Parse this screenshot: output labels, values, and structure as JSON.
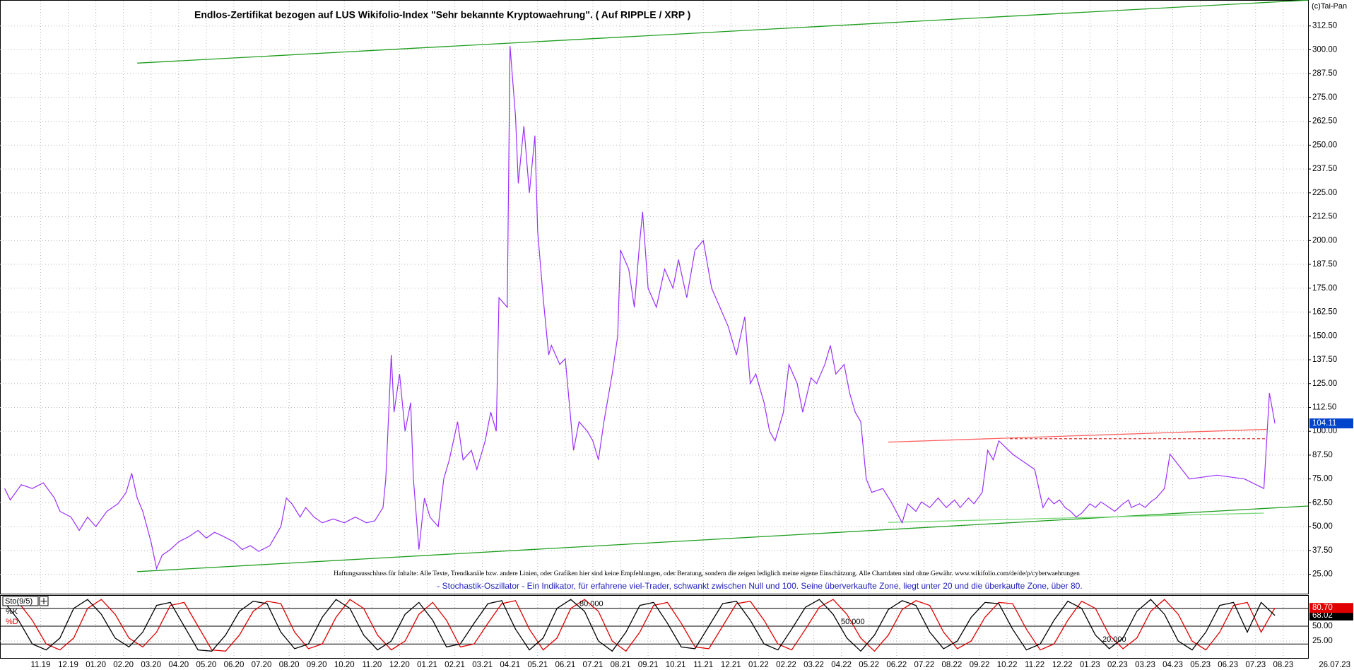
{
  "chart_data": [
    {
      "type": "line",
      "title": "Endlos-Zertifikat bezogen auf LUS Wikifolio-Index \"Sehr bekannte Kryptowaehrung\". ( Auf RIPPLE / XRP )",
      "copyright": "(c)Tai-Pan",
      "disclaimer": "Haftungsausschluss für Inhalte: Alle Texte, Trendkanäle bzw. andere Linien, oder Grafiken hier sind keine Empfehlungen, oder Beratung, sondern die zeigen lediglich meine eigene Einschätzung. Alle Chartdaten sind ohne Gewähr.  www.wikifolio.com/de/de/p/cyberwaehrungen",
      "note": "- Stochastik-Oszillator - Ein Indikator, für erfahrene viel-Trader, schwankt zwischen Null und 100. Seine überverkaufte Zone, liegt unter 20 und die überkaufte Zone, über 80.",
      "categories": [
        "11.19",
        "12.19",
        "01.20",
        "02.20",
        "03.20",
        "04.20",
        "05.20",
        "06.20",
        "07.20",
        "08.20",
        "09.20",
        "10.20",
        "11.20",
        "12.20",
        "01.21",
        "02.21",
        "03.21",
        "04.21",
        "05.21",
        "06.21",
        "07.21",
        "08.21",
        "09.21",
        "10.21",
        "11.21",
        "12.21",
        "01.22",
        "02.22",
        "03.22",
        "04.22",
        "05.22",
        "06.22",
        "07.22",
        "08.22",
        "09.22",
        "10.22",
        "11.22",
        "12.22",
        "01.23",
        "02.23",
        "03.23",
        "04.23",
        "05.23",
        "06.23",
        "07.23",
        "08.23"
      ],
      "last_date": "26.07.23",
      "xlim": [
        -1.47,
        45.9
      ],
      "ylim": [
        14.85,
        326.1
      ],
      "yticks": [
        {
          "value": 25,
          "label": "25.00"
        },
        {
          "value": 37.5,
          "label": "37.50"
        },
        {
          "value": 50,
          "label": "50.00"
        },
        {
          "value": 62.5,
          "label": "62.50"
        },
        {
          "value": 75,
          "label": "75.00"
        },
        {
          "value": 87.5,
          "label": "87.50"
        },
        {
          "value": 100,
          "label": "100.00"
        },
        {
          "value": 112.5,
          "label": "112.50"
        },
        {
          "value": 125,
          "label": "125.00"
        },
        {
          "value": 137.5,
          "label": "137.50"
        },
        {
          "value": 150,
          "label": "150.00"
        },
        {
          "value": 162.5,
          "label": "162.50"
        },
        {
          "value": 175,
          "label": "175.00"
        },
        {
          "value": 187.5,
          "label": "187.50"
        },
        {
          "value": 200,
          "label": "200.00"
        },
        {
          "value": 212.5,
          "label": "212.50"
        },
        {
          "value": 225,
          "label": "225.00"
        },
        {
          "value": 237.5,
          "label": "237.50"
        },
        {
          "value": 250,
          "label": "250.00"
        },
        {
          "value": 262.5,
          "label": "262.50"
        },
        {
          "value": 275,
          "label": "275.00"
        },
        {
          "value": 287.5,
          "label": "287.50"
        },
        {
          "value": 300,
          "label": "300.00"
        },
        {
          "value": 312.5,
          "label": "312.50"
        }
      ],
      "grid": true,
      "series": [
        {
          "color": "#9b30ff",
          "x": [
            -1.3,
            -1.1,
            -0.7,
            -0.3,
            0.1,
            0.5,
            0.7,
            1.1,
            1.4,
            1.7,
            2.0,
            2.4,
            2.8,
            3.1,
            3.3,
            3.5,
            3.7,
            4.0,
            4.2,
            4.4,
            4.7,
            5.0,
            5.4,
            5.7,
            6.0,
            6.3,
            6.6,
            7.0,
            7.3,
            7.6,
            7.9,
            8.3,
            8.5,
            8.7,
            8.9,
            9.1,
            9.4,
            9.6,
            9.9,
            10.2,
            10.6,
            11.0,
            11.4,
            11.8,
            12.1,
            12.4,
            12.5,
            12.7,
            12.8,
            13.0,
            13.2,
            13.4,
            13.5,
            13.7,
            13.9,
            14.1,
            14.4,
            14.6,
            14.8,
            15.1,
            15.3,
            15.6,
            15.8,
            16.1,
            16.3,
            16.5,
            16.6,
            16.9,
            17.0,
            17.2,
            17.3,
            17.5,
            17.7,
            17.9,
            18.0,
            18.2,
            18.4,
            18.5,
            18.8,
            19.0,
            19.3,
            19.5,
            19.8,
            20.0,
            20.2,
            20.4,
            20.7,
            20.9,
            21.0,
            21.3,
            21.5,
            21.7,
            21.8,
            22.0,
            22.3,
            22.6,
            22.9,
            23.1,
            23.4,
            23.7,
            24.0,
            24.3,
            24.6,
            24.9,
            25.2,
            25.5,
            25.7,
            25.9,
            26.1,
            26.2,
            26.4,
            26.6,
            26.9,
            27.1,
            27.4,
            27.6,
            27.9,
            28.1,
            28.4,
            28.6,
            28.8,
            29.1,
            29.3,
            29.5,
            29.7,
            29.9,
            30.1,
            30.5,
            30.8,
            31.2,
            31.4,
            31.7,
            31.9,
            32.2,
            32.5,
            32.8,
            33.1,
            33.3,
            33.6,
            33.8,
            34.1,
            34.3,
            34.5,
            34.7,
            35.2,
            35.5,
            36.0,
            36.3,
            36.5,
            36.7,
            36.9,
            37.1,
            37.3,
            37.5,
            37.7,
            38.0,
            38.2,
            38.4,
            38.7,
            38.9,
            39.2,
            39.4,
            39.5,
            39.8,
            40.0,
            40.2,
            40.4,
            40.7,
            40.9,
            41.6,
            42.6,
            43.6,
            44.3,
            44.5,
            44.7
          ],
          "values": [
            70,
            64,
            72,
            70,
            73,
            65,
            58,
            55,
            48,
            55,
            50,
            58,
            62,
            68,
            78,
            65,
            58,
            42,
            28,
            35,
            38,
            42,
            45,
            48,
            44,
            47,
            45,
            42,
            38,
            40,
            37,
            40,
            45,
            50,
            65,
            62,
            55,
            60,
            55,
            52,
            54,
            52,
            55,
            52,
            53,
            60,
            75,
            140,
            110,
            130,
            100,
            115,
            75,
            38,
            65,
            55,
            50,
            75,
            85,
            105,
            85,
            90,
            80,
            95,
            110,
            100,
            170,
            165,
            302,
            265,
            230,
            260,
            225,
            255,
            205,
            170,
            140,
            145,
            135,
            138,
            90,
            105,
            100,
            95,
            85,
            105,
            130,
            150,
            195,
            185,
            165,
            200,
            215,
            175,
            165,
            185,
            175,
            190,
            170,
            195,
            200,
            175,
            165,
            155,
            140,
            160,
            125,
            130,
            120,
            115,
            100,
            95,
            110,
            135,
            125,
            110,
            128,
            125,
            135,
            145,
            130,
            135,
            120,
            110,
            105,
            75,
            68,
            70,
            63,
            52,
            62,
            58,
            63,
            60,
            65,
            60,
            64,
            60,
            65,
            62,
            68,
            90,
            85,
            95,
            88,
            85,
            80,
            60,
            65,
            62,
            64,
            60,
            58,
            55,
            57,
            62,
            60,
            63,
            60,
            58,
            62,
            64,
            60,
            62,
            60,
            63,
            65,
            70,
            88,
            75,
            77,
            75,
            70,
            120,
            104.11
          ]
        }
      ],
      "trendlines": [
        {
          "color": "#1e9e1e",
          "style": "solid",
          "x": [
            3.5,
            45.9
          ],
          "values": [
            293,
            326
          ]
        },
        {
          "color": "#1e9e1e",
          "style": "solid",
          "x": [
            3.5,
            45.9
          ],
          "values": [
            26.4,
            60.8
          ]
        },
        {
          "color": "#ff6060",
          "style": "solid",
          "x": [
            30.7,
            44.4
          ],
          "values": [
            94.3,
            101
          ]
        },
        {
          "color": "#e03030",
          "style": "dashed",
          "x": [
            35.1,
            44.4
          ],
          "values": [
            96.1,
            96.1
          ]
        },
        {
          "color": "#7ad87a",
          "style": "solid",
          "x": [
            30.7,
            44.3
          ],
          "values": [
            52.2,
            57.1
          ]
        }
      ]
    },
    {
      "type": "line",
      "title": "Sto(9/5)",
      "ylim": [
        0,
        100
      ],
      "yticks": [
        {
          "value": 25,
          "label": "25.00"
        },
        {
          "value": 50,
          "label": "50.00"
        }
      ],
      "levels": [
        {
          "value": 80,
          "label": "80.000"
        },
        {
          "value": 50,
          "label": "50.000"
        },
        {
          "value": 20,
          "label": "20.000"
        }
      ],
      "x": [
        -1.3,
        -0.8,
        -0.3,
        0.2,
        0.7,
        1.2,
        1.7,
        2.2,
        2.7,
        3.2,
        3.7,
        4.2,
        4.7,
        5.2,
        5.7,
        6.2,
        6.7,
        7.2,
        7.7,
        8.2,
        8.7,
        9.2,
        9.7,
        10.2,
        10.7,
        11.2,
        11.7,
        12.2,
        12.7,
        13.2,
        13.7,
        14.2,
        14.7,
        15.2,
        15.7,
        16.2,
        16.7,
        17.2,
        17.7,
        18.2,
        18.7,
        19.2,
        19.7,
        20.2,
        20.7,
        21.2,
        21.7,
        22.2,
        22.7,
        23.2,
        23.7,
        24.2,
        24.7,
        25.2,
        25.7,
        26.2,
        26.7,
        27.2,
        27.7,
        28.2,
        28.7,
        29.2,
        29.7,
        30.2,
        30.7,
        31.2,
        31.7,
        32.2,
        32.7,
        33.2,
        33.7,
        34.2,
        34.7,
        35.2,
        35.7,
        36.2,
        36.7,
        37.2,
        37.7,
        38.2,
        38.7,
        39.2,
        39.7,
        40.2,
        40.7,
        41.2,
        41.7,
        42.2,
        42.7,
        43.2,
        43.7,
        44.2,
        44.7
      ],
      "series": [
        {
          "name": "%K",
          "color": "#000000",
          "values": [
            90,
            60,
            20,
            10,
            30,
            80,
            95,
            70,
            30,
            15,
            40,
            85,
            90,
            50,
            10,
            8,
            35,
            75,
            92,
            88,
            40,
            12,
            20,
            65,
            95,
            80,
            35,
            10,
            25,
            70,
            90,
            60,
            15,
            20,
            55,
            88,
            93,
            45,
            10,
            30,
            80,
            95,
            75,
            25,
            8,
            40,
            85,
            90,
            55,
            15,
            12,
            50,
            88,
            92,
            60,
            20,
            10,
            45,
            82,
            95,
            70,
            30,
            8,
            35,
            78,
            93,
            85,
            40,
            12,
            25,
            65,
            90,
            88,
            45,
            10,
            20,
            60,
            92,
            80,
            35,
            12,
            30,
            75,
            95,
            70,
            25,
            10,
            40,
            85,
            90,
            40,
            90,
            68.02
          ]
        },
        {
          "name": "%D",
          "color": "#e00000",
          "end_label": "80.70",
          "values": [
            85,
            90,
            60,
            20,
            10,
            30,
            80,
            95,
            70,
            30,
            15,
            40,
            85,
            90,
            50,
            10,
            8,
            35,
            75,
            92,
            88,
            40,
            12,
            20,
            65,
            95,
            80,
            35,
            10,
            25,
            70,
            90,
            60,
            15,
            20,
            55,
            88,
            93,
            45,
            10,
            30,
            80,
            95,
            75,
            25,
            8,
            40,
            85,
            90,
            55,
            15,
            12,
            50,
            88,
            92,
            60,
            20,
            10,
            45,
            82,
            95,
            70,
            30,
            8,
            35,
            78,
            93,
            85,
            40,
            12,
            25,
            65,
            90,
            88,
            45,
            10,
            20,
            60,
            92,
            80,
            35,
            12,
            30,
            75,
            95,
            70,
            25,
            10,
            40,
            85,
            90,
            40,
            80.7
          ]
        }
      ]
    }
  ]
}
